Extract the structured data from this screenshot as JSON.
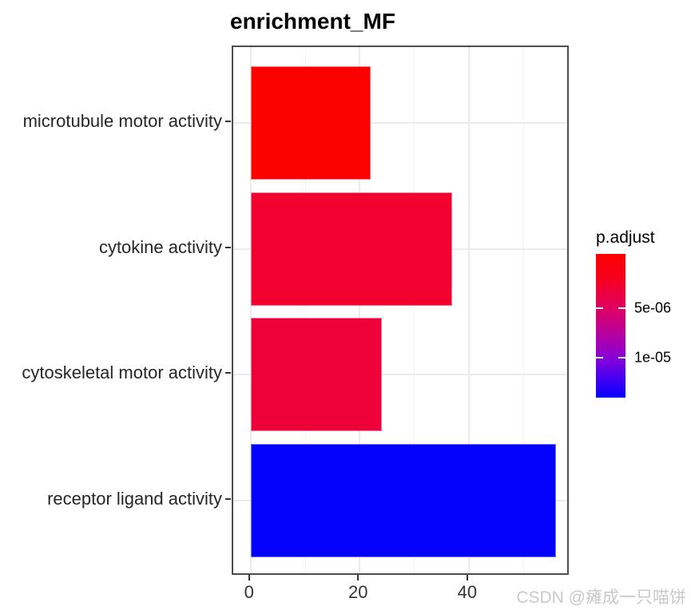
{
  "title": "enrichment_MF",
  "watermark": "CSDN @瘫成一只喵饼",
  "chart_data": {
    "type": "bar",
    "orientation": "horizontal",
    "title": "enrichment_MF",
    "categories": [
      "microtubule motor activity",
      "cytokine activity",
      "cytoskeletal motor activity",
      "receptor ligand activity"
    ],
    "values": [
      22,
      37,
      24,
      56
    ],
    "bar_colors": [
      "#fb0100",
      "#f2002f",
      "#ee0039",
      "#0301fb"
    ],
    "xlabel": "",
    "ylabel": "",
    "x_ticks": [
      0,
      20,
      40
    ],
    "x_minor_ticks": [
      10,
      30,
      50
    ],
    "xlim": [
      -3.2,
      58.6
    ],
    "grid": true,
    "panel_border_color": "#4d4d4d",
    "gridline_color": "#ebebeb",
    "legend": {
      "title": "p.adjust",
      "type": "gradient",
      "position": "right",
      "top_color": "#ff0000",
      "bottom_color": "#0600ff",
      "gradient_stops": [
        {
          "pos": 0.0,
          "color": "#ff0000"
        },
        {
          "pos": 0.18,
          "color": "#f60021"
        },
        {
          "pos": 0.375,
          "color": "#e10060"
        },
        {
          "pos": 0.53,
          "color": "#bc0096"
        },
        {
          "pos": 0.72,
          "color": "#8b00d6"
        },
        {
          "pos": 0.86,
          "color": "#4800f1"
        },
        {
          "pos": 1.0,
          "color": "#0600ff"
        }
      ],
      "ticks": [
        {
          "label": "5e-06",
          "pos": 0.375
        },
        {
          "label": "1e-05",
          "pos": 0.72
        }
      ]
    }
  }
}
